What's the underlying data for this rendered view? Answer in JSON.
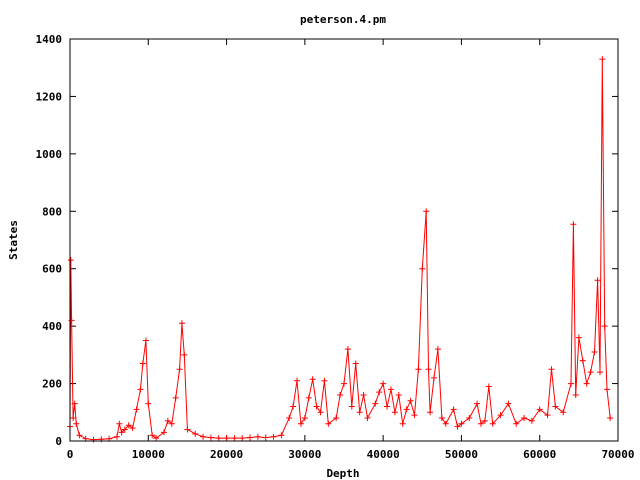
{
  "chart_data": {
    "type": "line",
    "title": "peterson.4.pm",
    "xlabel": "Depth",
    "ylabel": "States",
    "xlim": [
      0,
      70000
    ],
    "ylim": [
      0,
      1400
    ],
    "x_ticks": [
      0,
      10000,
      20000,
      30000,
      40000,
      50000,
      60000,
      70000
    ],
    "y_ticks": [
      0,
      200,
      400,
      600,
      800,
      1000,
      1200,
      1400
    ],
    "grid": false,
    "legend": "none",
    "series": [
      {
        "color": "#ff0000",
        "marker": "plus",
        "points": [
          [
            0,
            50
          ],
          [
            100,
            630
          ],
          [
            200,
            420
          ],
          [
            400,
            80
          ],
          [
            600,
            130
          ],
          [
            800,
            60
          ],
          [
            1200,
            20
          ],
          [
            2000,
            8
          ],
          [
            3000,
            5
          ],
          [
            4000,
            6
          ],
          [
            5000,
            8
          ],
          [
            6000,
            15
          ],
          [
            6300,
            60
          ],
          [
            6600,
            30
          ],
          [
            7000,
            40
          ],
          [
            7500,
            55
          ],
          [
            8000,
            45
          ],
          [
            8500,
            110
          ],
          [
            9000,
            180
          ],
          [
            9300,
            270
          ],
          [
            9700,
            350
          ],
          [
            10000,
            130
          ],
          [
            10500,
            20
          ],
          [
            11000,
            10
          ],
          [
            12000,
            30
          ],
          [
            12500,
            70
          ],
          [
            13000,
            60
          ],
          [
            13500,
            150
          ],
          [
            14000,
            250
          ],
          [
            14300,
            410
          ],
          [
            14600,
            300
          ],
          [
            15000,
            40
          ],
          [
            16000,
            25
          ],
          [
            17000,
            15
          ],
          [
            18000,
            12
          ],
          [
            19000,
            10
          ],
          [
            20000,
            10
          ],
          [
            21000,
            10
          ],
          [
            22000,
            10
          ],
          [
            23000,
            12
          ],
          [
            24000,
            15
          ],
          [
            25000,
            12
          ],
          [
            26000,
            15
          ],
          [
            27000,
            20
          ],
          [
            28000,
            80
          ],
          [
            28500,
            120
          ],
          [
            29000,
            210
          ],
          [
            29500,
            60
          ],
          [
            30000,
            80
          ],
          [
            30500,
            150
          ],
          [
            31000,
            215
          ],
          [
            31500,
            120
          ],
          [
            32000,
            100
          ],
          [
            32500,
            210
          ],
          [
            33000,
            60
          ],
          [
            34000,
            80
          ],
          [
            34500,
            160
          ],
          [
            35000,
            200
          ],
          [
            35500,
            320
          ],
          [
            36000,
            120
          ],
          [
            36500,
            270
          ],
          [
            37000,
            100
          ],
          [
            37500,
            160
          ],
          [
            38000,
            80
          ],
          [
            39000,
            130
          ],
          [
            39500,
            170
          ],
          [
            40000,
            200
          ],
          [
            40500,
            120
          ],
          [
            41000,
            180
          ],
          [
            41500,
            100
          ],
          [
            42000,
            160
          ],
          [
            42500,
            60
          ],
          [
            43000,
            110
          ],
          [
            43500,
            140
          ],
          [
            44000,
            90
          ],
          [
            44500,
            250
          ],
          [
            45000,
            600
          ],
          [
            45500,
            800
          ],
          [
            45800,
            250
          ],
          [
            46000,
            100
          ],
          [
            46500,
            220
          ],
          [
            47000,
            320
          ],
          [
            47500,
            80
          ],
          [
            48000,
            60
          ],
          [
            49000,
            110
          ],
          [
            49500,
            50
          ],
          [
            50000,
            60
          ],
          [
            51000,
            80
          ],
          [
            52000,
            130
          ],
          [
            52500,
            60
          ],
          [
            53000,
            70
          ],
          [
            53500,
            190
          ],
          [
            54000,
            60
          ],
          [
            55000,
            90
          ],
          [
            56000,
            130
          ],
          [
            57000,
            60
          ],
          [
            58000,
            80
          ],
          [
            59000,
            70
          ],
          [
            60000,
            110
          ],
          [
            61000,
            90
          ],
          [
            61500,
            250
          ],
          [
            62000,
            120
          ],
          [
            63000,
            100
          ],
          [
            64000,
            200
          ],
          [
            64300,
            755
          ],
          [
            64600,
            160
          ],
          [
            65000,
            360
          ],
          [
            65500,
            280
          ],
          [
            66000,
            200
          ],
          [
            66500,
            240
          ],
          [
            67000,
            310
          ],
          [
            67400,
            560
          ],
          [
            67700,
            240
          ],
          [
            68000,
            1330
          ],
          [
            68300,
            400
          ],
          [
            68600,
            180
          ],
          [
            69000,
            80
          ]
        ]
      }
    ]
  }
}
